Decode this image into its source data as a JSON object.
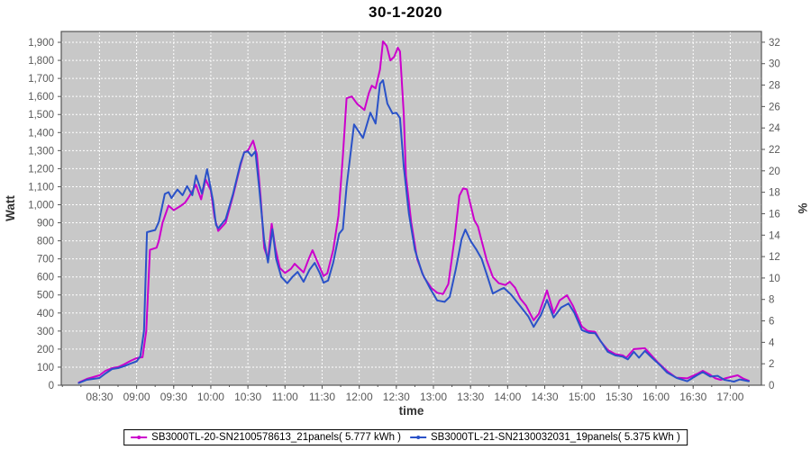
{
  "title": "30-1-2020",
  "axes": {
    "left_label": "Watt",
    "right_label": "%",
    "bottom_label": "time"
  },
  "colors": {
    "series1": "#CC00CC",
    "series2": "#2A52C8",
    "plot_bg": "#C8C8C8",
    "grid": "#FFFFFF",
    "plot_border": "#555555",
    "tick_label": "#595959",
    "axis_label": "#333333"
  },
  "legend": {
    "item1": "SB3000TL-20-SN2100578613_21panels( 5.777 kWh )",
    "item2": "SB3000TL-21-SN2130032031_19panels( 5.375 kWh )"
  },
  "chart_data": {
    "type": "line",
    "title": "30-1-2020",
    "xlabel": "time",
    "ylabel_left": "Watt",
    "ylabel_right": "%",
    "grid": true,
    "legend_position": "bottom",
    "x_ticks": [
      "08:30",
      "09:00",
      "09:30",
      "10:00",
      "10:30",
      "11:00",
      "11:30",
      "12:00",
      "12:30",
      "13:00",
      "13:30",
      "14:00",
      "14:30",
      "15:00",
      "15:30",
      "16:00",
      "16:30",
      "17:00"
    ],
    "x_tick_hours": [
      8.5,
      9.0,
      9.5,
      10.0,
      10.5,
      11.0,
      11.5,
      12.0,
      12.5,
      13.0,
      13.5,
      14.0,
      14.5,
      15.0,
      15.5,
      16.0,
      16.5,
      17.0
    ],
    "x_minor_step_hours": 0.25,
    "xlim_hours": [
      7.985,
      17.42
    ],
    "ylim_left": [
      0,
      1960
    ],
    "y_ticks_left_max": 1900,
    "y_tick_step_left": 100,
    "ylim_right": [
      0,
      33
    ],
    "y_ticks_right_max": 32,
    "y_tick_step_right": 2,
    "series": [
      {
        "name": "SB3000TL-20-SN2100578613_21panels( 5.777 kWh )",
        "color": "#CC00CC",
        "units": [
          "hours",
          "watt"
        ],
        "points": [
          [
            8.22,
            15
          ],
          [
            8.33,
            35
          ],
          [
            8.5,
            55
          ],
          [
            8.58,
            80
          ],
          [
            8.67,
            95
          ],
          [
            8.75,
            100
          ],
          [
            8.83,
            115
          ],
          [
            8.92,
            135
          ],
          [
            9.0,
            150
          ],
          [
            9.08,
            155
          ],
          [
            9.13,
            300
          ],
          [
            9.18,
            750
          ],
          [
            9.27,
            762
          ],
          [
            9.3,
            800
          ],
          [
            9.35,
            900
          ],
          [
            9.43,
            995
          ],
          [
            9.5,
            970
          ],
          [
            9.58,
            990
          ],
          [
            9.65,
            1010
          ],
          [
            9.7,
            1040
          ],
          [
            9.8,
            1110
          ],
          [
            9.87,
            1030
          ],
          [
            9.93,
            1140
          ],
          [
            10.0,
            1080
          ],
          [
            10.05,
            930
          ],
          [
            10.1,
            855
          ],
          [
            10.2,
            900
          ],
          [
            10.3,
            1050
          ],
          [
            10.4,
            1220
          ],
          [
            10.45,
            1290
          ],
          [
            10.5,
            1300
          ],
          [
            10.57,
            1355
          ],
          [
            10.62,
            1280
          ],
          [
            10.67,
            1050
          ],
          [
            10.72,
            760
          ],
          [
            10.77,
            700
          ],
          [
            10.82,
            895
          ],
          [
            10.87,
            760
          ],
          [
            10.93,
            650
          ],
          [
            11.0,
            622
          ],
          [
            11.08,
            645
          ],
          [
            11.13,
            673
          ],
          [
            11.25,
            625
          ],
          [
            11.32,
            700
          ],
          [
            11.37,
            748
          ],
          [
            11.43,
            690
          ],
          [
            11.52,
            605
          ],
          [
            11.57,
            620
          ],
          [
            11.65,
            750
          ],
          [
            11.72,
            940
          ],
          [
            11.78,
            1270
          ],
          [
            11.83,
            1590
          ],
          [
            11.9,
            1600
          ],
          [
            11.97,
            1560
          ],
          [
            12.07,
            1525
          ],
          [
            12.13,
            1620
          ],
          [
            12.17,
            1660
          ],
          [
            12.22,
            1645
          ],
          [
            12.28,
            1750
          ],
          [
            12.32,
            1905
          ],
          [
            12.37,
            1880
          ],
          [
            12.42,
            1800
          ],
          [
            12.47,
            1820
          ],
          [
            12.52,
            1870
          ],
          [
            12.55,
            1850
          ],
          [
            12.6,
            1500
          ],
          [
            12.63,
            1160
          ],
          [
            12.7,
            905
          ],
          [
            12.78,
            700
          ],
          [
            12.87,
            600
          ],
          [
            12.97,
            540
          ],
          [
            13.05,
            512
          ],
          [
            13.13,
            505
          ],
          [
            13.2,
            560
          ],
          [
            13.28,
            800
          ],
          [
            13.35,
            1050
          ],
          [
            13.4,
            1090
          ],
          [
            13.45,
            1085
          ],
          [
            13.5,
            1000
          ],
          [
            13.55,
            915
          ],
          [
            13.6,
            880
          ],
          [
            13.65,
            800
          ],
          [
            13.72,
            690
          ],
          [
            13.8,
            600
          ],
          [
            13.88,
            565
          ],
          [
            13.97,
            555
          ],
          [
            14.03,
            573
          ],
          [
            14.1,
            540
          ],
          [
            14.17,
            480
          ],
          [
            14.25,
            440
          ],
          [
            14.35,
            360
          ],
          [
            14.42,
            395
          ],
          [
            14.53,
            525
          ],
          [
            14.62,
            400
          ],
          [
            14.7,
            470
          ],
          [
            14.8,
            498
          ],
          [
            14.88,
            440
          ],
          [
            15.0,
            325
          ],
          [
            15.08,
            300
          ],
          [
            15.18,
            295
          ],
          [
            15.25,
            245
          ],
          [
            15.35,
            195
          ],
          [
            15.45,
            172
          ],
          [
            15.55,
            165
          ],
          [
            15.6,
            152
          ],
          [
            15.7,
            200
          ],
          [
            15.85,
            205
          ],
          [
            15.95,
            160
          ],
          [
            16.02,
            128
          ],
          [
            16.15,
            78
          ],
          [
            16.27,
            42
          ],
          [
            16.42,
            38
          ],
          [
            16.55,
            62
          ],
          [
            16.63,
            80
          ],
          [
            16.72,
            60
          ],
          [
            16.8,
            38
          ],
          [
            16.87,
            30
          ],
          [
            16.95,
            40
          ],
          [
            17.1,
            55
          ],
          [
            17.17,
            38
          ],
          [
            17.25,
            25
          ]
        ]
      },
      {
        "name": "SB3000TL-21-SN2130032031_19panels( 5.375 kWh )",
        "color": "#2A52C8",
        "units": [
          "hours",
          "watt"
        ],
        "points": [
          [
            8.22,
            12
          ],
          [
            8.33,
            30
          ],
          [
            8.5,
            40
          ],
          [
            8.58,
            65
          ],
          [
            8.67,
            90
          ],
          [
            8.75,
            95
          ],
          [
            8.83,
            105
          ],
          [
            8.92,
            120
          ],
          [
            9.0,
            132
          ],
          [
            9.05,
            160
          ],
          [
            9.1,
            300
          ],
          [
            9.14,
            848
          ],
          [
            9.2,
            855
          ],
          [
            9.25,
            860
          ],
          [
            9.3,
            905
          ],
          [
            9.38,
            1060
          ],
          [
            9.43,
            1070
          ],
          [
            9.47,
            1037
          ],
          [
            9.55,
            1084
          ],
          [
            9.62,
            1053
          ],
          [
            9.68,
            1103
          ],
          [
            9.75,
            1053
          ],
          [
            9.8,
            1162
          ],
          [
            9.88,
            1062
          ],
          [
            9.95,
            1197
          ],
          [
            10.03,
            1022
          ],
          [
            10.07,
            888
          ],
          [
            10.1,
            870
          ],
          [
            10.2,
            920
          ],
          [
            10.3,
            1060
          ],
          [
            10.4,
            1230
          ],
          [
            10.45,
            1290
          ],
          [
            10.5,
            1295
          ],
          [
            10.55,
            1270
          ],
          [
            10.6,
            1295
          ],
          [
            10.65,
            1100
          ],
          [
            10.72,
            800
          ],
          [
            10.77,
            680
          ],
          [
            10.83,
            865
          ],
          [
            10.88,
            700
          ],
          [
            10.95,
            600
          ],
          [
            11.03,
            565
          ],
          [
            11.1,
            600
          ],
          [
            11.17,
            628
          ],
          [
            11.25,
            573
          ],
          [
            11.33,
            640
          ],
          [
            11.4,
            678
          ],
          [
            11.47,
            620
          ],
          [
            11.52,
            568
          ],
          [
            11.58,
            580
          ],
          [
            11.65,
            680
          ],
          [
            11.73,
            840
          ],
          [
            11.78,
            865
          ],
          [
            11.83,
            1100
          ],
          [
            11.93,
            1445
          ],
          [
            12.05,
            1370
          ],
          [
            12.15,
            1510
          ],
          [
            12.22,
            1450
          ],
          [
            12.28,
            1670
          ],
          [
            12.32,
            1690
          ],
          [
            12.38,
            1560
          ],
          [
            12.45,
            1505
          ],
          [
            12.5,
            1510
          ],
          [
            12.55,
            1480
          ],
          [
            12.6,
            1210
          ],
          [
            12.67,
            950
          ],
          [
            12.75,
            750
          ],
          [
            12.85,
            620
          ],
          [
            12.95,
            540
          ],
          [
            13.05,
            470
          ],
          [
            13.15,
            462
          ],
          [
            13.22,
            490
          ],
          [
            13.3,
            640
          ],
          [
            13.38,
            810
          ],
          [
            13.43,
            863
          ],
          [
            13.5,
            800
          ],
          [
            13.58,
            750
          ],
          [
            13.65,
            700
          ],
          [
            13.73,
            600
          ],
          [
            13.8,
            508
          ],
          [
            13.9,
            530
          ],
          [
            13.95,
            539
          ],
          [
            14.05,
            500
          ],
          [
            14.17,
            438
          ],
          [
            14.28,
            380
          ],
          [
            14.35,
            323
          ],
          [
            14.45,
            390
          ],
          [
            14.53,
            473
          ],
          [
            14.62,
            375
          ],
          [
            14.72,
            430
          ],
          [
            14.82,
            453
          ],
          [
            14.9,
            400
          ],
          [
            15.0,
            305
          ],
          [
            15.1,
            290
          ],
          [
            15.18,
            288
          ],
          [
            15.27,
            235
          ],
          [
            15.35,
            185
          ],
          [
            15.45,
            165
          ],
          [
            15.55,
            158
          ],
          [
            15.62,
            143
          ],
          [
            15.7,
            185
          ],
          [
            15.77,
            152
          ],
          [
            15.85,
            190
          ],
          [
            15.95,
            150
          ],
          [
            16.05,
            112
          ],
          [
            16.15,
            70
          ],
          [
            16.28,
            40
          ],
          [
            16.42,
            22
          ],
          [
            16.55,
            55
          ],
          [
            16.63,
            73
          ],
          [
            16.73,
            48
          ],
          [
            16.83,
            52
          ],
          [
            16.92,
            30
          ],
          [
            17.05,
            20
          ],
          [
            17.13,
            32
          ],
          [
            17.25,
            22
          ]
        ]
      }
    ]
  }
}
